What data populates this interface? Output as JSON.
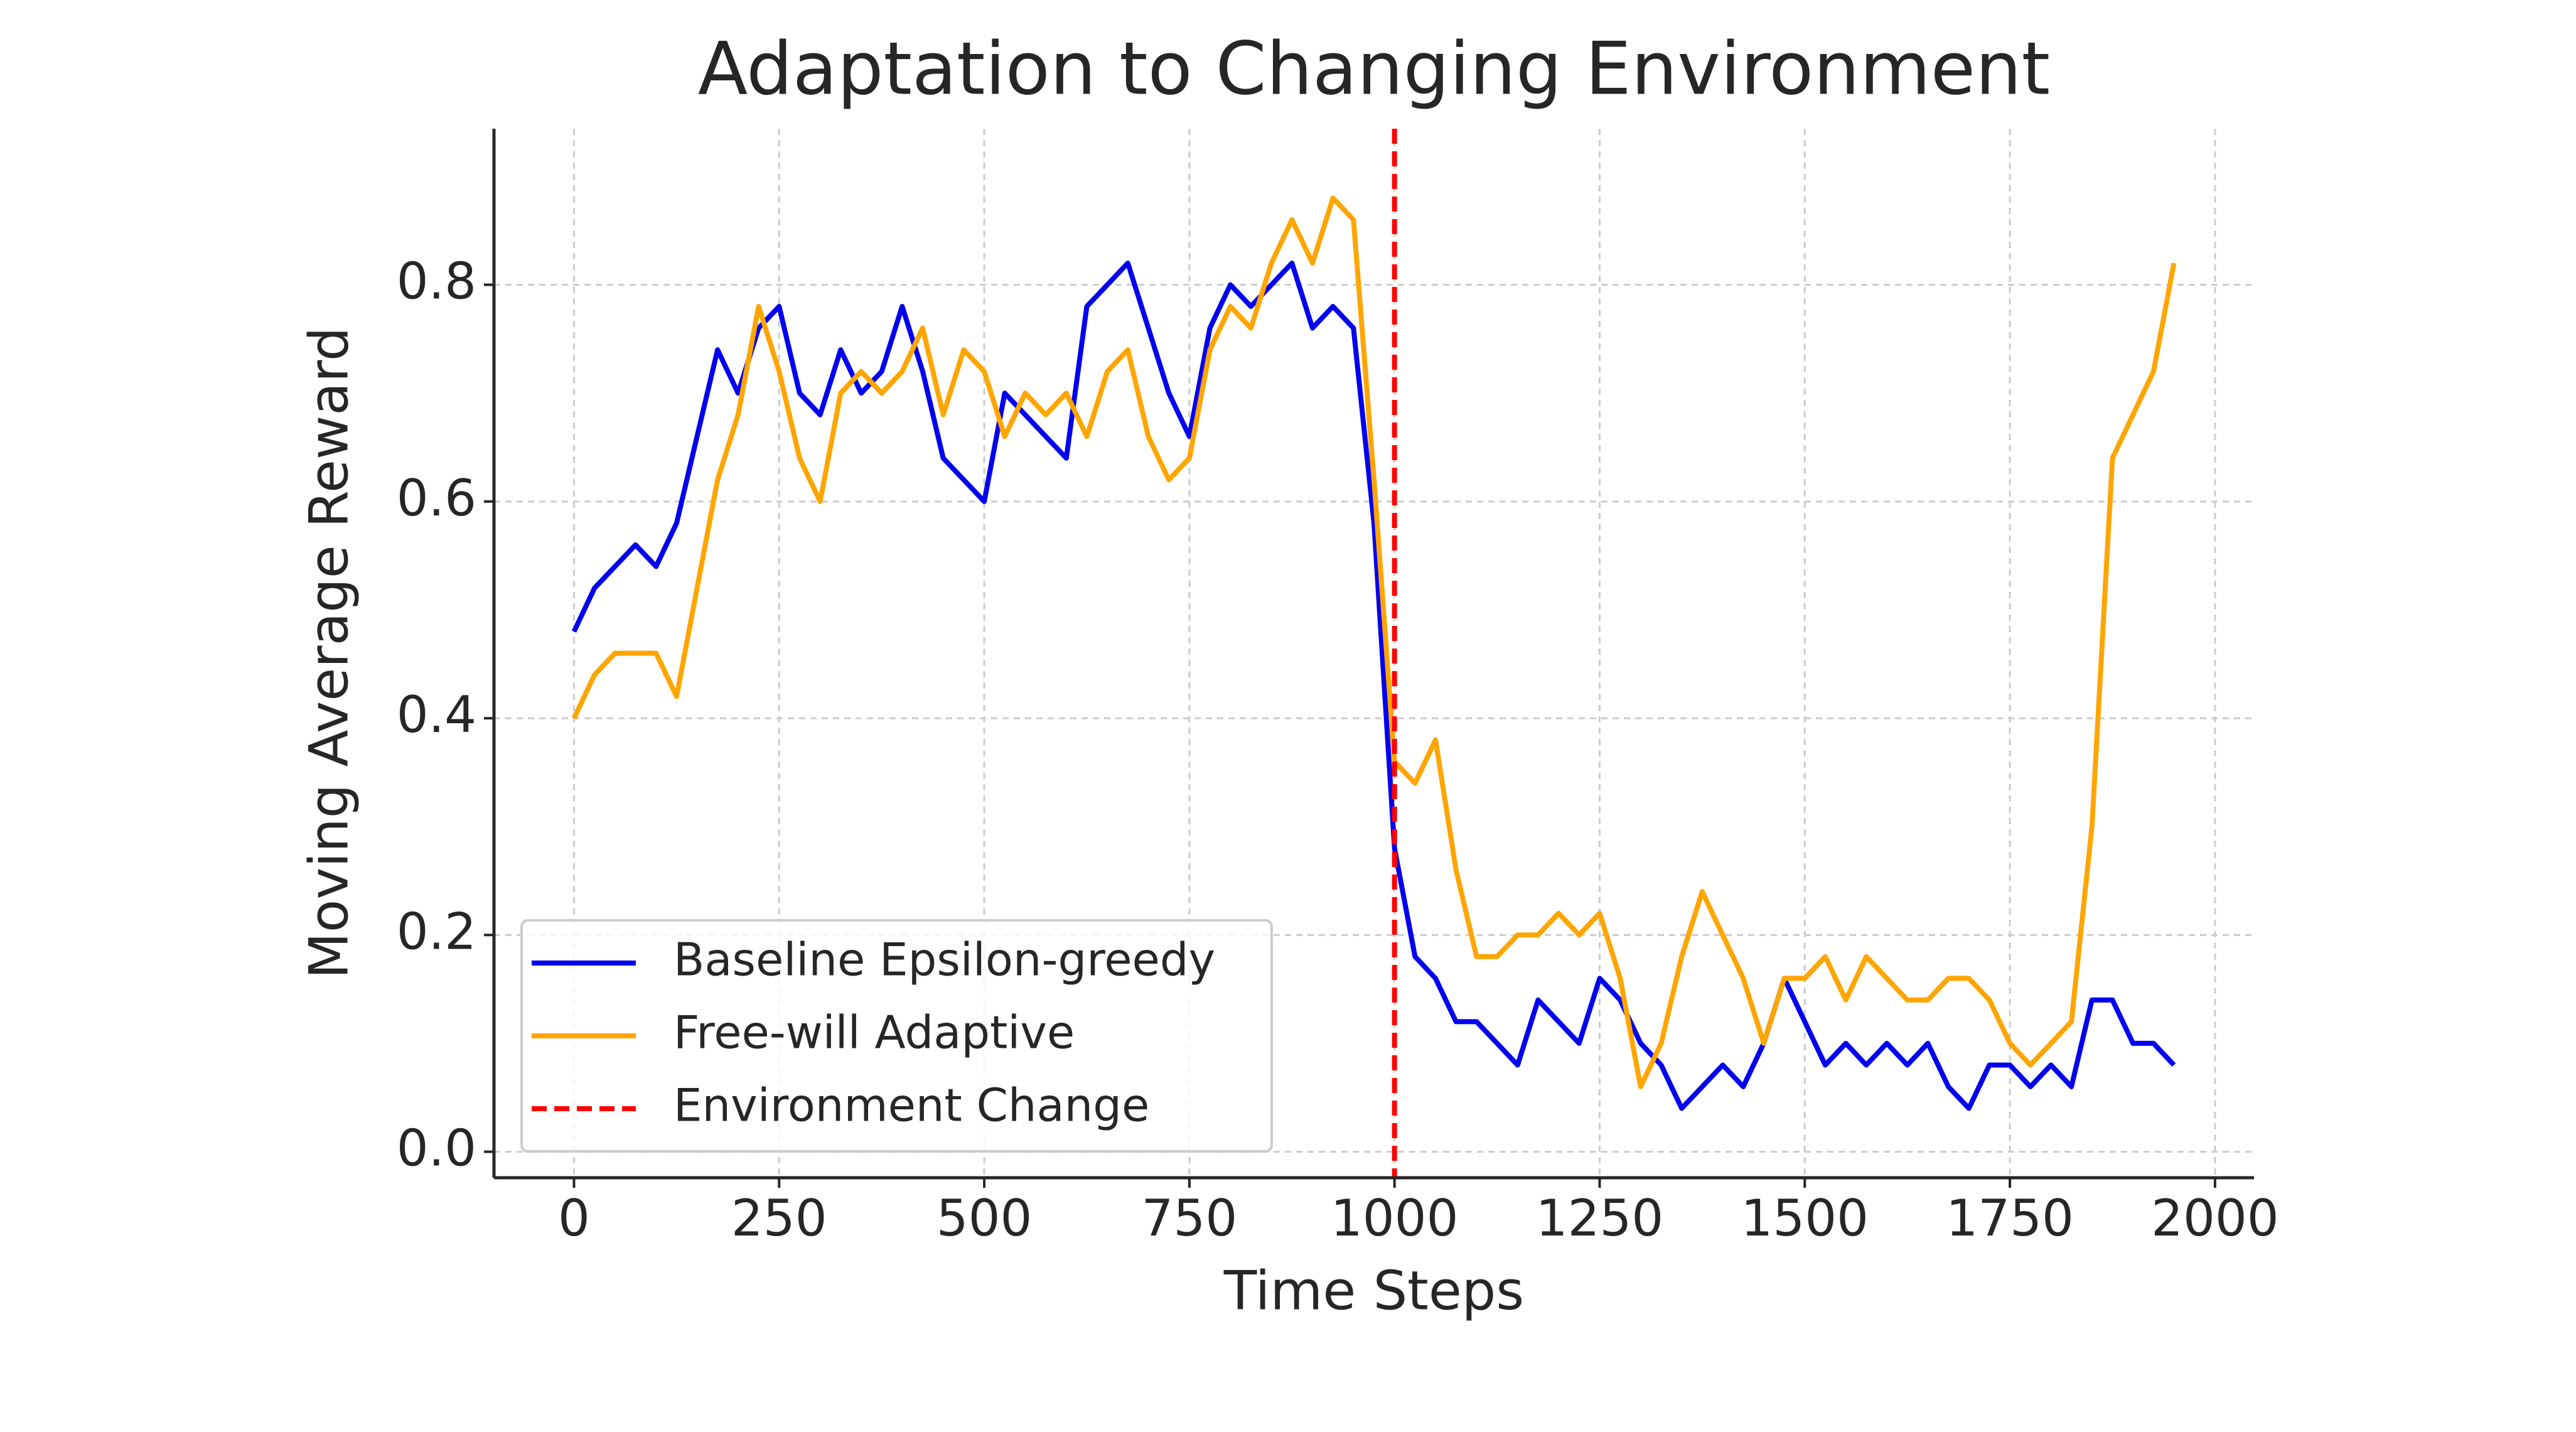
{
  "chart_data": {
    "type": "line",
    "title": "Adaptation to Changing Environment",
    "xlabel": "Time Steps",
    "ylabel": "Moving Average Reward",
    "x": [
      0,
      25,
      50,
      75,
      100,
      125,
      150,
      175,
      200,
      225,
      250,
      275,
      300,
      325,
      350,
      375,
      400,
      425,
      450,
      475,
      500,
      525,
      550,
      575,
      600,
      625,
      650,
      675,
      700,
      725,
      750,
      775,
      800,
      825,
      850,
      875,
      900,
      925,
      950,
      975,
      1000,
      1025,
      1050,
      1075,
      1100,
      1125,
      1150,
      1175,
      1200,
      1225,
      1250,
      1275,
      1300,
      1325,
      1350,
      1375,
      1400,
      1425,
      1450,
      1475,
      1500,
      1525,
      1550,
      1575,
      1600,
      1625,
      1650,
      1675,
      1700,
      1725,
      1750,
      1775,
      1800,
      1825,
      1850,
      1875,
      1900,
      1925,
      1950
    ],
    "series": [
      {
        "name": "Baseline Epsilon-greedy",
        "color": "#0000ee",
        "values": [
          0.48,
          0.52,
          0.54,
          0.56,
          0.54,
          0.58,
          0.66,
          0.74,
          0.7,
          0.76,
          0.78,
          0.7,
          0.68,
          0.74,
          0.7,
          0.72,
          0.78,
          0.72,
          0.64,
          0.62,
          0.6,
          0.7,
          0.68,
          0.66,
          0.64,
          0.78,
          0.8,
          0.82,
          0.76,
          0.7,
          0.66,
          0.76,
          0.8,
          0.78,
          0.8,
          0.82,
          0.76,
          0.78,
          0.76,
          0.58,
          0.28,
          0.18,
          0.16,
          0.12,
          0.12,
          0.1,
          0.08,
          0.14,
          0.12,
          0.1,
          0.16,
          0.14,
          0.1,
          0.08,
          0.04,
          0.06,
          0.08,
          0.06,
          0.1,
          0.16,
          0.12,
          0.08,
          0.1,
          0.08,
          0.1,
          0.08,
          0.1,
          0.06,
          0.04,
          0.08,
          0.08,
          0.06,
          0.08,
          0.06,
          0.14,
          0.14,
          0.1,
          0.1,
          0.08
        ]
      },
      {
        "name": "Free-will Adaptive",
        "color": "#ffa500",
        "values": [
          0.4,
          0.44,
          0.46,
          0.46,
          0.46,
          0.42,
          0.52,
          0.62,
          0.68,
          0.78,
          0.72,
          0.64,
          0.6,
          0.7,
          0.72,
          0.7,
          0.72,
          0.76,
          0.68,
          0.74,
          0.72,
          0.66,
          0.7,
          0.68,
          0.7,
          0.66,
          0.72,
          0.74,
          0.66,
          0.62,
          0.64,
          0.74,
          0.78,
          0.76,
          0.82,
          0.86,
          0.82,
          0.88,
          0.86,
          0.62,
          0.36,
          0.34,
          0.38,
          0.26,
          0.18,
          0.18,
          0.2,
          0.2,
          0.22,
          0.2,
          0.22,
          0.16,
          0.06,
          0.1,
          0.18,
          0.24,
          0.2,
          0.16,
          0.1,
          0.16,
          0.16,
          0.18,
          0.14,
          0.18,
          0.16,
          0.14,
          0.14,
          0.16,
          0.16,
          0.14,
          0.1,
          0.08,
          0.1,
          0.12,
          0.3,
          0.64,
          0.68,
          0.72,
          0.82
        ]
      }
    ],
    "vlines": [
      {
        "x": 1000,
        "name": "Environment Change",
        "color": "#ff0000"
      }
    ],
    "xlim": [
      -97.5,
      2047.5
    ],
    "ylim": [
      -0.024,
      0.944
    ],
    "xticks": [
      0,
      250,
      500,
      750,
      1000,
      1250,
      1500,
      1750,
      2000
    ],
    "yticks": [
      {
        "value": 0,
        "label": "0.0"
      },
      {
        "value": 0.2,
        "label": "0.2"
      },
      {
        "value": 0.4,
        "label": "0.4"
      },
      {
        "value": 0.6,
        "label": "0.6"
      },
      {
        "value": 0.8,
        "label": "0.8"
      }
    ],
    "grid": true,
    "legend": "lower left"
  }
}
